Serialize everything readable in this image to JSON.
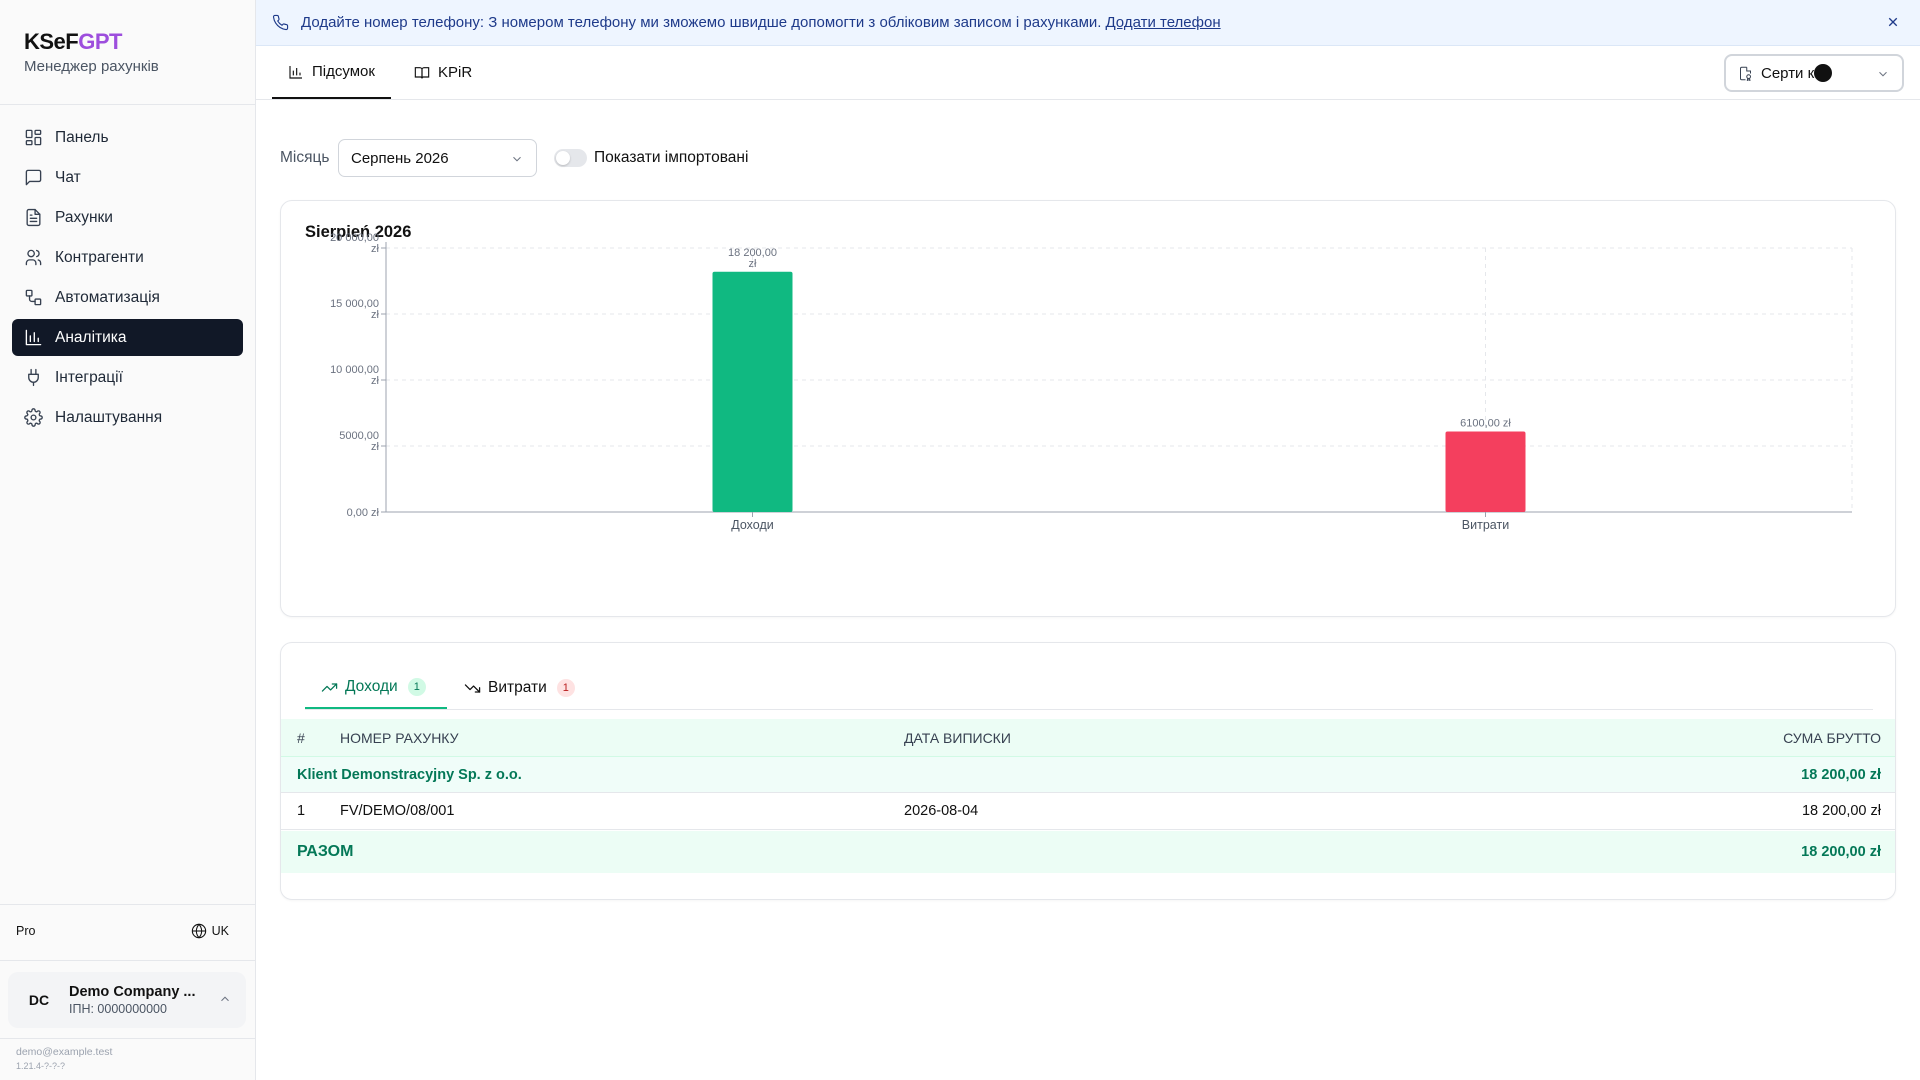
{
  "brand": {
    "name_main": "KSeF",
    "name_accent": "GPT",
    "subtitle": "Менеджер рахунків",
    "accent_color": "#9d4edd"
  },
  "nav": [
    {
      "label": "Панель",
      "icon": "dashboard-icon"
    },
    {
      "label": "Чат",
      "icon": "chat-icon"
    },
    {
      "label": "Рахунки",
      "icon": "document-icon"
    },
    {
      "label": "Контрагенти",
      "icon": "users-icon"
    },
    {
      "label": "Автоматизація",
      "icon": "workflow-icon"
    },
    {
      "label": "Аналітика",
      "icon": "bar-chart-icon",
      "active": true
    },
    {
      "label": "Інтеграції",
      "icon": "plug-icon"
    },
    {
      "label": "Налаштування",
      "icon": "gear-icon"
    }
  ],
  "sidebar_footer": {
    "plan": "Pro",
    "language": "UK",
    "account": {
      "initials": "DC",
      "name": "Demo Company ...",
      "tax_id": "ІПН: 0000000000"
    },
    "email": "demo@example.test",
    "version": "1.21.4-?-?-?"
  },
  "banner": {
    "text": "Додайте номер телефону: З номером телефону ми зможемо швидше допомогти з обліковим записом і рахунками.",
    "link": "Додати телефон"
  },
  "top_tabs": [
    {
      "label": "Підсумок",
      "icon": "bar-chart-icon",
      "active": true
    },
    {
      "label": "KPiR",
      "icon": "book-icon",
      "active": false
    }
  ],
  "certificate_button": {
    "label": "Серти   кат"
  },
  "filters": {
    "month_label": "Місяць",
    "month_value": "Серпень 2026",
    "toggle_label": "Показати імпортовані",
    "toggle_on": false
  },
  "chart_data": {
    "type": "bar",
    "title": "Sierpień 2026",
    "categories": [
      "Доходи",
      "Витрати"
    ],
    "values": [
      18200,
      6100
    ],
    "value_labels": [
      [
        "18 200,00",
        "zł"
      ],
      [
        "6100,00 zł"
      ]
    ],
    "colors": [
      "#10b981",
      "#f43f5e"
    ],
    "ylim": [
      0,
      20000
    ],
    "yticks": [
      {
        "value": 20000,
        "label": [
          "20 000,00",
          "zł"
        ]
      },
      {
        "value": 15000,
        "label": [
          "15 000,00",
          "zł"
        ]
      },
      {
        "value": 10000,
        "label": [
          "10 000,00",
          "zł"
        ]
      },
      {
        "value": 5000,
        "label": [
          "5000,00",
          "zł"
        ]
      },
      {
        "value": 0,
        "label": [
          "0,00 zł"
        ]
      }
    ],
    "grid": true
  },
  "table_tabs": [
    {
      "label": "Доходи",
      "count": "1",
      "icon": "trending-up-icon",
      "active": true
    },
    {
      "label": "Витрати",
      "count": "1",
      "icon": "trending-down-icon",
      "active": false
    }
  ],
  "table": {
    "headers": {
      "num": "#",
      "invoice": "НОМЕР РАХУНКУ",
      "date": "ДАТА ВИПИСКИ",
      "sum": "СУМА БРУТТО"
    },
    "group": {
      "name": "Klient Demonstracyjny Sp. z o.o.",
      "sum": "18 200,00 zł"
    },
    "rows": [
      {
        "num": "1",
        "invoice": "FV/DEMO/08/001",
        "date": "2026-08-04",
        "sum": "18 200,00 zł"
      }
    ],
    "total": {
      "label": "РАЗОМ",
      "sum": "18 200,00 zł"
    }
  }
}
